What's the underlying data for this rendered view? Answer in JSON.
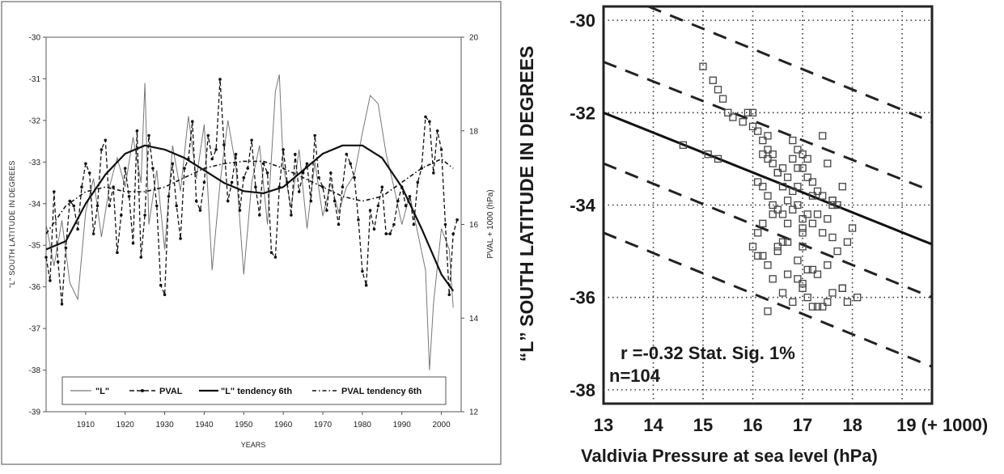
{
  "chart_data": [
    {
      "type": "line",
      "xlabel": "YEARS",
      "ylabel": "\"L\" SOUTH LATITUDE IN DEGREES",
      "y2label": "PVAL    + 1000 (hPa)",
      "xlim": [
        1900,
        2005
      ],
      "ylim": [
        -39,
        -30
      ],
      "y2lim": [
        12,
        20
      ],
      "xticks": [
        1910,
        1920,
        1930,
        1940,
        1950,
        1960,
        1970,
        1980,
        1990,
        2000
      ],
      "yticks": [
        -30,
        -31,
        -32,
        -33,
        -34,
        -35,
        -36,
        -37,
        -38,
        -39
      ],
      "y2ticks": [
        12,
        14,
        16,
        18,
        20
      ],
      "legend": {
        "placement": "bottom",
        "entries": [
          "\"L\"",
          "PVAL",
          "\"L\" tendency 6th",
          "PVAL tendency 6th"
        ]
      },
      "series": [
        {
          "name": "\"L\"",
          "axis": "left",
          "style": "thin-solid",
          "x": [
            1900,
            1902,
            1904,
            1906,
            1908,
            1910,
            1912,
            1914,
            1916,
            1918,
            1920,
            1922,
            1924,
            1925,
            1926,
            1928,
            1930,
            1932,
            1934,
            1936,
            1938,
            1940,
            1942,
            1944,
            1946,
            1948,
            1950,
            1952,
            1954,
            1956,
            1958,
            1959,
            1960,
            1962,
            1964,
            1966,
            1968,
            1970,
            1972,
            1974,
            1976,
            1978,
            1980,
            1982,
            1984,
            1986,
            1988,
            1990,
            1992,
            1994,
            1996,
            1997,
            1998,
            2000,
            2002,
            2003
          ],
          "y": [
            -34.5,
            -35.5,
            -34.4,
            -35.9,
            -36.3,
            -34.2,
            -33.4,
            -34.8,
            -33.6,
            -32.9,
            -33.6,
            -32.4,
            -33.5,
            -31.1,
            -34.5,
            -33.2,
            -35.1,
            -32.6,
            -33.7,
            -31.9,
            -33.4,
            -32.1,
            -35.6,
            -33.5,
            -32.0,
            -33.1,
            -35.7,
            -33.5,
            -32.6,
            -34.5,
            -31.3,
            -30.9,
            -33.1,
            -34.1,
            -32.7,
            -34.6,
            -33.0,
            -34.3,
            -33.5,
            -34.2,
            -33.6,
            -33.3,
            -32.3,
            -31.4,
            -31.6,
            -32.8,
            -33.6,
            -34.5,
            -33.8,
            -34.7,
            -35.6,
            -38.0,
            -36.4,
            -34.6,
            -35.1,
            -36.5
          ]
        },
        {
          "name": "PVAL",
          "axis": "right",
          "style": "dashed-markers",
          "x": [
            1900,
            1901,
            1902,
            1903,
            1904,
            1905,
            1906,
            1907,
            1908,
            1909,
            1910,
            1911,
            1912,
            1913,
            1914,
            1915,
            1916,
            1917,
            1918,
            1919,
            1920,
            1921,
            1922,
            1923,
            1924,
            1925,
            1926,
            1927,
            1928,
            1929,
            1930,
            1931,
            1932,
            1933,
            1934,
            1935,
            1936,
            1937,
            1938,
            1939,
            1940,
            1941,
            1942,
            1943,
            1944,
            1945,
            1946,
            1947,
            1948,
            1949,
            1950,
            1951,
            1952,
            1953,
            1954,
            1955,
            1956,
            1957,
            1958,
            1959,
            1960,
            1961,
            1962,
            1963,
            1964,
            1965,
            1966,
            1967,
            1968,
            1969,
            1970,
            1971,
            1972,
            1973,
            1974,
            1975,
            1976,
            1977,
            1978,
            1979,
            1980,
            1981,
            1982,
            1983,
            1984,
            1985,
            1986,
            1987,
            1988,
            1989,
            1990,
            1991,
            1992,
            1993,
            1994,
            1995,
            1996,
            1997,
            1998,
            1999,
            2000,
            2001,
            2002,
            2003,
            2004
          ],
          "y": [
            15.3,
            14.8,
            16.7,
            15.2,
            14.3,
            15.5,
            16.5,
            16.4,
            15.9,
            16.8,
            17.3,
            17.1,
            15.8,
            16.4,
            17.6,
            17.8,
            16.4,
            16.8,
            15.4,
            16.2,
            17.2,
            16.6,
            15.6,
            18.0,
            15.3,
            16.2,
            17.9,
            17.2,
            16.4,
            14.7,
            14.5,
            16.6,
            17.3,
            16.4,
            15.7,
            17.2,
            17.4,
            18.2,
            16.5,
            16.3,
            16.9,
            17.9,
            17.4,
            17.6,
            19.1,
            17.7,
            16.5,
            16.9,
            17.5,
            16.3,
            17.0,
            17.2,
            17.8,
            16.8,
            16.2,
            17.3,
            17.1,
            15.4,
            15.3,
            16.8,
            17.6,
            16.9,
            16.2,
            17.5,
            16.7,
            17.1,
            17.3,
            16.5,
            17.9,
            17.0,
            16.8,
            16.3,
            17.1,
            16.5,
            16.0,
            16.8,
            17.5,
            17.3,
            17.0,
            16.1,
            15.0,
            14.7,
            16.3,
            15.9,
            16.4,
            16.8,
            15.8,
            15.8,
            16.0,
            16.5,
            16.8,
            16.4,
            16.6,
            16.0,
            16.9,
            17.2,
            18.3,
            18.2,
            17.1,
            18.0,
            17.6,
            16.0,
            14.5,
            15.8,
            16.1
          ]
        },
        {
          "name": "\"L\" tendency 6th",
          "axis": "left",
          "style": "thick-solid",
          "x": [
            1900,
            1905,
            1910,
            1915,
            1920,
            1925,
            1930,
            1935,
            1940,
            1945,
            1950,
            1955,
            1960,
            1965,
            1970,
            1975,
            1980,
            1985,
            1990,
            1995,
            2000,
            2003
          ],
          "y": [
            -35.1,
            -34.9,
            -34.0,
            -33.3,
            -32.8,
            -32.6,
            -32.7,
            -32.9,
            -33.2,
            -33.5,
            -33.7,
            -33.75,
            -33.6,
            -33.2,
            -32.8,
            -32.6,
            -32.6,
            -32.9,
            -33.6,
            -34.6,
            -35.7,
            -36.1
          ]
        },
        {
          "name": "PVAL tendency 6th",
          "axis": "right",
          "style": "dotted-dash",
          "x": [
            1900,
            1905,
            1910,
            1915,
            1920,
            1925,
            1930,
            1935,
            1940,
            1945,
            1950,
            1955,
            1960,
            1965,
            1970,
            1975,
            1980,
            1985,
            1990,
            1995,
            2000,
            2003
          ],
          "y": [
            15.8,
            16.4,
            16.7,
            16.8,
            16.7,
            16.7,
            16.8,
            17.0,
            17.2,
            17.3,
            17.35,
            17.35,
            17.2,
            17.0,
            16.8,
            16.6,
            16.5,
            16.6,
            16.9,
            17.2,
            17.4,
            17.2
          ]
        }
      ]
    },
    {
      "type": "scatter",
      "xlabel": "Valdivia Pressure at sea level (hPa)",
      "ylabel": "“L” SOUTH LATITUDE IN DEGREES",
      "xlim": [
        13,
        19.6
      ],
      "ylim": [
        -38.3,
        -29.7
      ],
      "xticks": [
        "13",
        "14",
        "15",
        "16",
        "17",
        "18",
        "19 (+ 1000)"
      ],
      "xtick_values": [
        13,
        14,
        15,
        16,
        17,
        18,
        19
      ],
      "yticks": [
        -30,
        -32,
        -34,
        -36,
        -38
      ],
      "grid": true,
      "annotation_line1": "r =-0.32 Stat. Sig. 1%",
      "annotation_line2": "n=104",
      "regression": {
        "x": [
          13,
          19.6
        ],
        "y": [
          -32.0,
          -34.85
        ]
      },
      "confidence_lines": [
        {
          "x": [
            13.9,
            19.6
          ],
          "y": [
            -29.7,
            -32.2
          ]
        },
        {
          "x": [
            13,
            19.6
          ],
          "y": [
            -30.9,
            -33.7
          ]
        },
        {
          "x": [
            13,
            19.6
          ],
          "y": [
            -33.1,
            -36.0
          ]
        },
        {
          "x": [
            13,
            19.6
          ],
          "y": [
            -34.6,
            -37.5
          ]
        }
      ],
      "points_x": [
        15.0,
        15.2,
        15.3,
        15.4,
        15.5,
        15.6,
        15.8,
        15.9,
        16.0,
        16.1,
        16.2,
        16.3,
        16.3,
        16.4,
        16.4,
        16.5,
        16.6,
        16.7,
        16.8,
        16.9,
        17.0,
        17.0,
        17.1,
        17.2,
        17.3,
        17.4,
        17.6,
        17.7,
        17.8,
        14.6,
        15.1,
        15.3,
        16.1,
        16.2,
        16.3,
        16.4,
        16.5,
        16.6,
        16.7,
        16.8,
        16.9,
        17.0,
        17.0,
        17.1,
        17.2,
        17.4,
        17.5,
        17.6,
        17.9,
        18.0,
        16.0,
        16.2,
        16.3,
        16.5,
        16.7,
        16.9,
        17.0,
        17.2,
        17.3,
        17.5,
        17.8,
        18.1,
        16.4,
        16.6,
        16.8,
        17.0,
        17.1,
        17.4,
        17.6,
        17.9,
        16.2,
        16.5,
        16.9,
        17.2,
        17.5,
        16.1,
        16.7,
        17.0,
        17.3,
        17.6,
        16.0,
        16.3,
        16.8,
        17.1,
        16.6,
        16.9,
        17.4,
        17.6,
        16.2,
        16.8,
        17.7,
        16.4,
        16.9,
        17.1,
        17.3,
        16.7,
        17.5,
        17.8,
        16.5,
        16.1,
        17.0,
        16.3,
        17.2,
        16.6
      ],
      "points_y": [
        -31.0,
        -31.3,
        -31.5,
        -31.7,
        -32.0,
        -32.1,
        -32.2,
        -32.0,
        -32.3,
        -32.4,
        -32.6,
        -32.8,
        -33.0,
        -32.9,
        -33.1,
        -33.3,
        -33.2,
        -33.4,
        -33.0,
        -32.8,
        -32.9,
        -33.2,
        -33.4,
        -33.5,
        -33.7,
        -33.8,
        -33.9,
        -34.0,
        -33.6,
        -32.7,
        -32.9,
        -33.0,
        -33.5,
        -33.6,
        -33.8,
        -34.0,
        -34.1,
        -34.2,
        -33.9,
        -33.7,
        -34.0,
        -34.3,
        -34.5,
        -34.2,
        -34.4,
        -34.6,
        -34.3,
        -34.7,
        -34.8,
        -34.5,
        -34.9,
        -35.1,
        -35.3,
        -35.0,
        -34.8,
        -35.2,
        -34.9,
        -35.4,
        -35.5,
        -35.3,
        -35.8,
        -36.0,
        -35.6,
        -35.9,
        -36.1,
        -35.7,
        -36.0,
        -36.2,
        -35.9,
        -36.1,
        -32.9,
        -33.3,
        -33.6,
        -33.8,
        -33.1,
        -34.6,
        -34.4,
        -34.6,
        -34.2,
        -34.0,
        -32.0,
        -32.5,
        -32.6,
        -33.0,
        -33.6,
        -33.2,
        -32.5,
        -33.9,
        -34.4,
        -34.1,
        -35.0,
        -34.2,
        -35.6,
        -35.4,
        -36.2,
        -35.5,
        -36.1,
        -35.8,
        -34.9,
        -35.1,
        -35.8,
        -36.3,
        -36.2,
        -34.8
      ]
    }
  ]
}
